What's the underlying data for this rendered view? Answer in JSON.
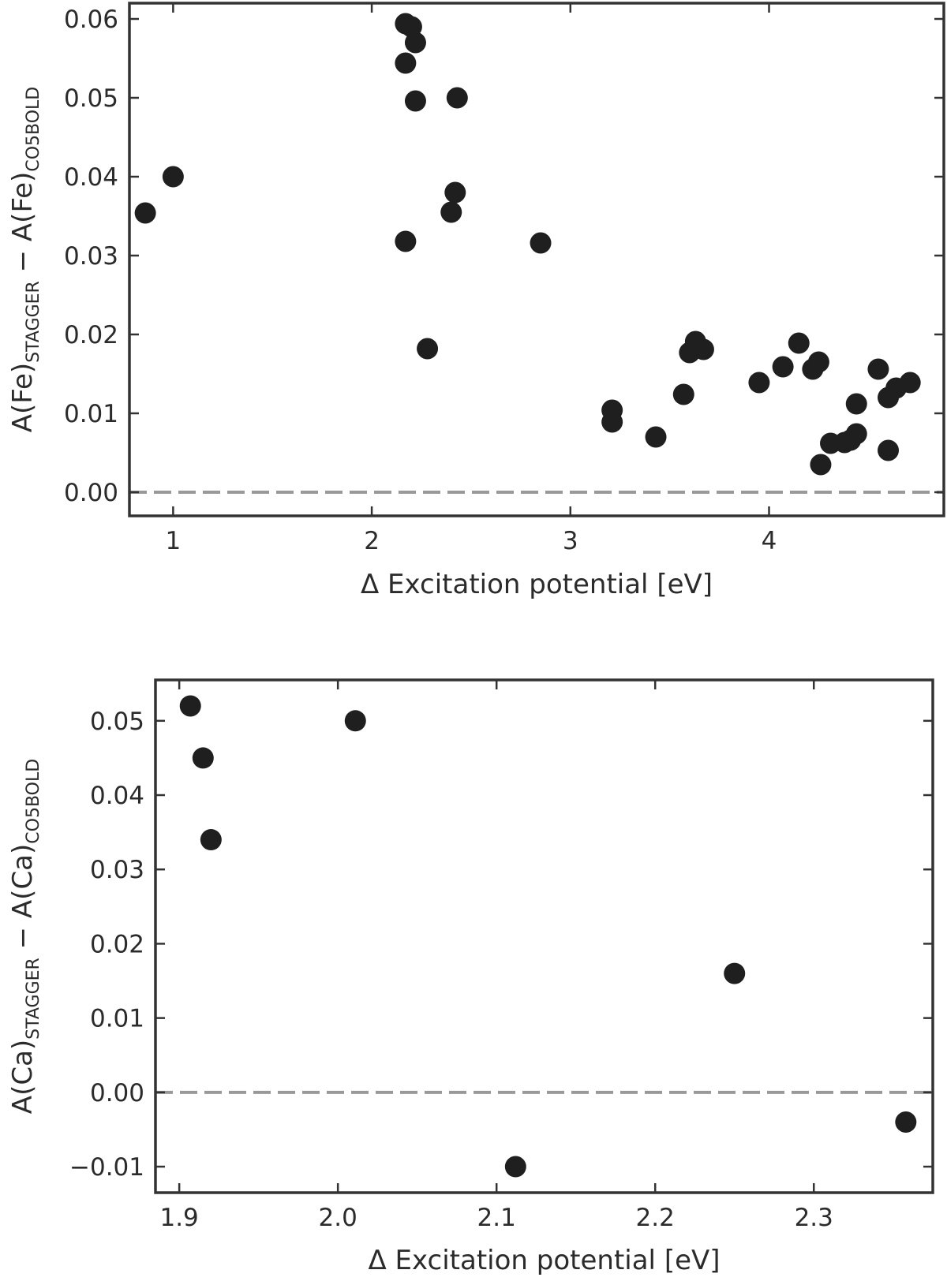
{
  "chart_data": [
    {
      "type": "scatter",
      "xlabel": "Δ Excitation potential [eV]",
      "ylabel": {
        "main1": "A(Fe)",
        "sub1": "STAGGER",
        "mid": " − A(Fe)",
        "sub2": "CO5BOLD"
      },
      "xlim": [
        0.78,
        4.88
      ],
      "ylim": [
        -0.003,
        0.062
      ],
      "xticks": [
        1,
        2,
        3,
        4
      ],
      "xtick_labels": [
        "1",
        "2",
        "3",
        "4"
      ],
      "yticks": [
        0.0,
        0.01,
        0.02,
        0.03,
        0.04,
        0.05,
        0.06
      ],
      "ytick_labels": [
        "0.00",
        "0.01",
        "0.02",
        "0.03",
        "0.04",
        "0.05",
        "0.06"
      ],
      "reference_line": 0.0,
      "grid": false,
      "marker_color": "#1f1f1f",
      "line_color": "#999999",
      "points": [
        {
          "x": 0.86,
          "y": 0.0354
        },
        {
          "x": 1.0,
          "y": 0.04
        },
        {
          "x": 2.17,
          "y": 0.0594
        },
        {
          "x": 2.2,
          "y": 0.059
        },
        {
          "x": 2.22,
          "y": 0.057
        },
        {
          "x": 2.17,
          "y": 0.0544
        },
        {
          "x": 2.22,
          "y": 0.0496
        },
        {
          "x": 2.43,
          "y": 0.05
        },
        {
          "x": 2.42,
          "y": 0.038
        },
        {
          "x": 2.4,
          "y": 0.0355
        },
        {
          "x": 2.17,
          "y": 0.0318
        },
        {
          "x": 2.28,
          "y": 0.0182
        },
        {
          "x": 2.85,
          "y": 0.0316
        },
        {
          "x": 3.21,
          "y": 0.0104
        },
        {
          "x": 3.21,
          "y": 0.0089
        },
        {
          "x": 3.43,
          "y": 0.007
        },
        {
          "x": 3.57,
          "y": 0.0124
        },
        {
          "x": 3.6,
          "y": 0.0177
        },
        {
          "x": 3.63,
          "y": 0.0191
        },
        {
          "x": 3.67,
          "y": 0.0181
        },
        {
          "x": 3.95,
          "y": 0.0139
        },
        {
          "x": 4.07,
          "y": 0.0159
        },
        {
          "x": 4.15,
          "y": 0.0189
        },
        {
          "x": 4.22,
          "y": 0.0156
        },
        {
          "x": 4.25,
          "y": 0.0165
        },
        {
          "x": 4.26,
          "y": 0.0035
        },
        {
          "x": 4.31,
          "y": 0.0062
        },
        {
          "x": 4.38,
          "y": 0.0063
        },
        {
          "x": 4.41,
          "y": 0.0066
        },
        {
          "x": 4.44,
          "y": 0.0074
        },
        {
          "x": 4.44,
          "y": 0.0112
        },
        {
          "x": 4.55,
          "y": 0.0156
        },
        {
          "x": 4.6,
          "y": 0.0053
        },
        {
          "x": 4.6,
          "y": 0.012
        },
        {
          "x": 4.64,
          "y": 0.0132
        },
        {
          "x": 4.71,
          "y": 0.0139
        }
      ]
    },
    {
      "type": "scatter",
      "xlabel": "Δ Excitation potential [eV]",
      "ylabel": {
        "main1": "A(Ca)",
        "sub1": "STAGGER",
        "mid": " − A(Ca)",
        "sub2": "CO5BOLD"
      },
      "xlim": [
        1.885,
        2.375
      ],
      "ylim": [
        -0.0135,
        0.0555
      ],
      "xticks": [
        1.9,
        2.0,
        2.1,
        2.2,
        2.3
      ],
      "xtick_labels": [
        "1.9",
        "2.0",
        "2.1",
        "2.2",
        "2.3"
      ],
      "yticks": [
        -0.01,
        0.0,
        0.01,
        0.02,
        0.03,
        0.04,
        0.05
      ],
      "ytick_labels": [
        "−0.01",
        "0.00",
        "0.01",
        "0.02",
        "0.03",
        "0.04",
        "0.05"
      ],
      "reference_line": 0.0,
      "grid": false,
      "marker_color": "#1f1f1f",
      "line_color": "#999999",
      "points": [
        {
          "x": 1.907,
          "y": 0.052
        },
        {
          "x": 1.915,
          "y": 0.045
        },
        {
          "x": 1.92,
          "y": 0.034
        },
        {
          "x": 2.011,
          "y": 0.05
        },
        {
          "x": 2.112,
          "y": -0.01
        },
        {
          "x": 2.25,
          "y": 0.016
        },
        {
          "x": 2.358,
          "y": -0.004
        }
      ]
    }
  ]
}
